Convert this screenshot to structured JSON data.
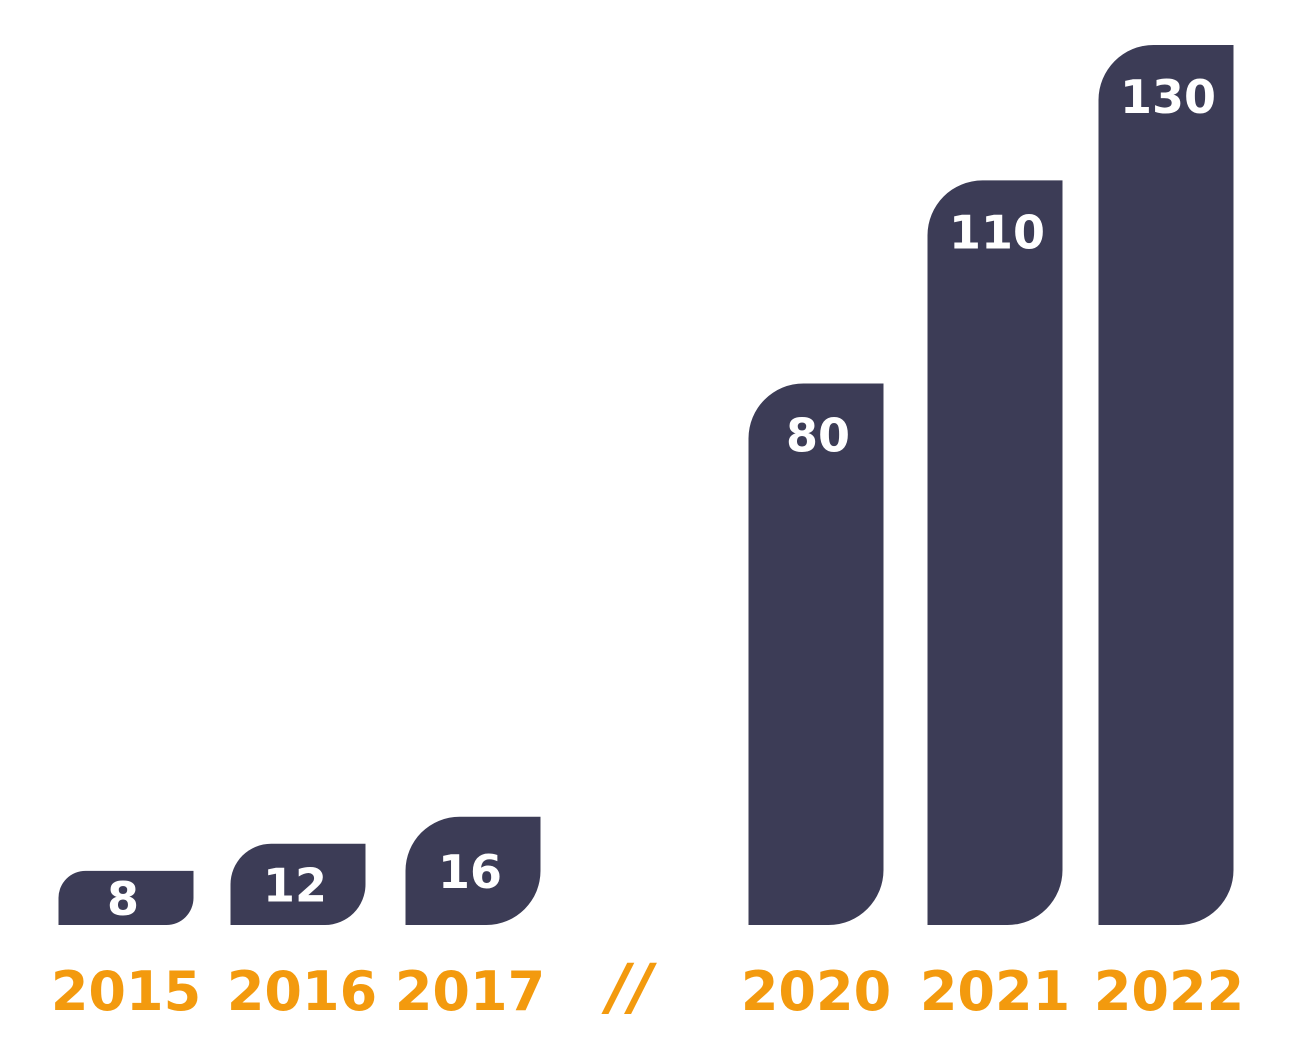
{
  "chart_data": {
    "type": "bar",
    "categories": [
      "2015",
      "2016",
      "2017",
      "2020",
      "2021",
      "2022"
    ],
    "values": [
      8,
      12,
      16,
      80,
      110,
      130
    ],
    "axis_break": {
      "after_category": "2017",
      "label": "//"
    },
    "title": "",
    "xlabel": "",
    "ylabel": "",
    "ylim": [
      0,
      130
    ],
    "grid": false,
    "legend": "none",
    "colors": {
      "bar": "#3c3c56",
      "value_label": "#ffffff",
      "year_label": "#f39a0e"
    }
  }
}
